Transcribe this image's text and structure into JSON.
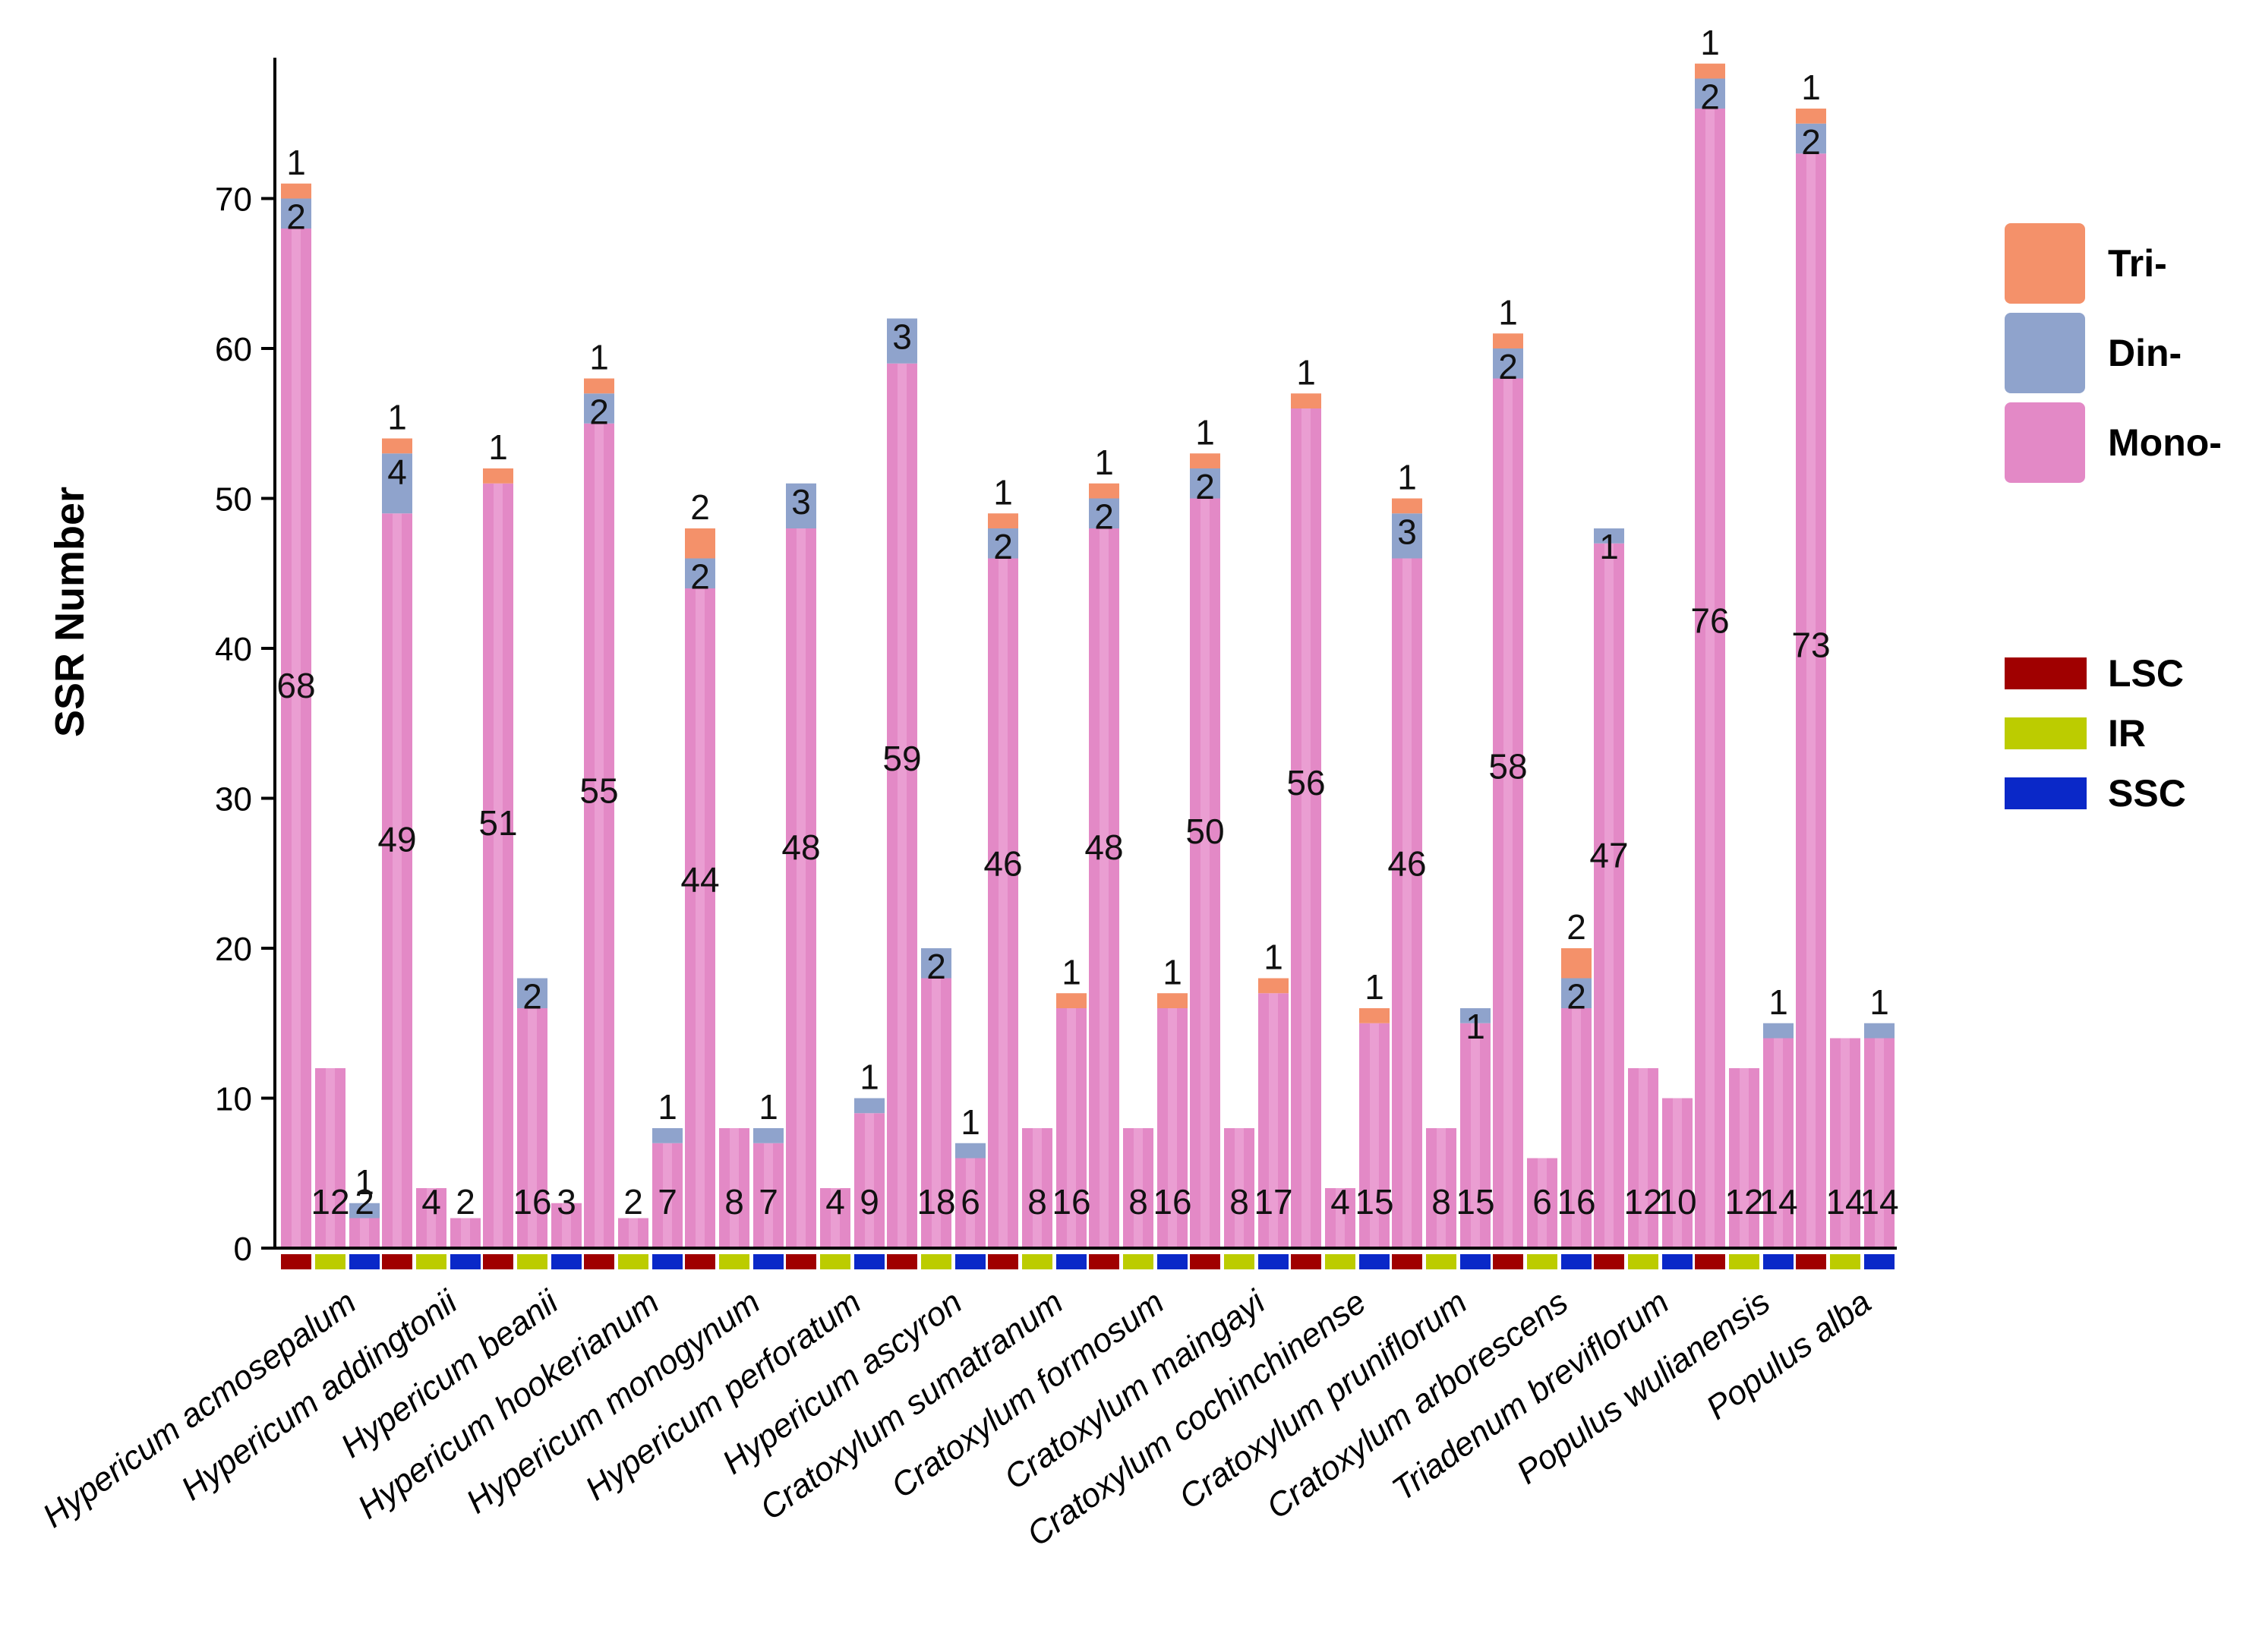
{
  "chart_data": {
    "type": "bar",
    "ylabel": "SSR Number",
    "ylim": [
      0,
      80
    ],
    "yticks": [
      0,
      10,
      20,
      30,
      40,
      50,
      60,
      70
    ],
    "series_order": [
      "Mono-",
      "Din-",
      "Tri-"
    ],
    "regions": [
      {
        "name": "LSC",
        "color": "#a00000"
      },
      {
        "name": "IR",
        "color": "#bccc00"
      },
      {
        "name": "SSC",
        "color": "#0a28c8"
      }
    ],
    "legend_types": [
      {
        "name": "Tri-",
        "color": "#f4916a"
      },
      {
        "name": "Din-",
        "color": "#8fa3cc"
      },
      {
        "name": "Mono-",
        "color": "#e389c6"
      }
    ],
    "species": [
      {
        "name": "Hypericum acmosepalum",
        "bars": [
          {
            "region": "LSC",
            "mono": 68,
            "di": 2,
            "tri": 1
          },
          {
            "region": "IR",
            "mono": 12,
            "di": 0,
            "tri": 0
          },
          {
            "region": "SSC",
            "mono": 2,
            "di": 1,
            "tri": 0
          }
        ]
      },
      {
        "name": "Hypericum addingtonii",
        "bars": [
          {
            "region": "LSC",
            "mono": 49,
            "di": 4,
            "tri": 1
          },
          {
            "region": "IR",
            "mono": 4,
            "di": 0,
            "tri": 0
          },
          {
            "region": "SSC",
            "mono": 2,
            "di": 0,
            "tri": 0
          }
        ]
      },
      {
        "name": "Hypericum beanii",
        "bars": [
          {
            "region": "LSC",
            "mono": 51,
            "di": 0,
            "tri": 1
          },
          {
            "region": "IR",
            "mono": 16,
            "di": 2,
            "tri": 0
          },
          {
            "region": "SSC",
            "mono": 3,
            "di": 0,
            "tri": 0
          }
        ]
      },
      {
        "name": "Hypericum hookerianum",
        "bars": [
          {
            "region": "LSC",
            "mono": 55,
            "di": 2,
            "tri": 1
          },
          {
            "region": "IR",
            "mono": 2,
            "di": 0,
            "tri": 0
          },
          {
            "region": "SSC",
            "mono": 7,
            "di": 1,
            "tri": 0
          }
        ]
      },
      {
        "name": "Hypericum monogynum",
        "bars": [
          {
            "region": "LSC",
            "mono": 44,
            "di": 2,
            "tri": 2
          },
          {
            "region": "IR",
            "mono": 8,
            "di": 0,
            "tri": 0
          },
          {
            "region": "SSC",
            "mono": 7,
            "di": 1,
            "tri": 0
          }
        ]
      },
      {
        "name": "Hypericum perforatum",
        "bars": [
          {
            "region": "LSC",
            "mono": 48,
            "di": 3,
            "tri": 0
          },
          {
            "region": "IR",
            "mono": 4,
            "di": 0,
            "tri": 0
          },
          {
            "region": "SSC",
            "mono": 9,
            "di": 1,
            "tri": 0
          }
        ]
      },
      {
        "name": "Hypericum ascyron",
        "bars": [
          {
            "region": "LSC",
            "mono": 59,
            "di": 3,
            "tri": 0
          },
          {
            "region": "IR",
            "mono": 18,
            "di": 2,
            "tri": 0
          },
          {
            "region": "SSC",
            "mono": 6,
            "di": 1,
            "tri": 0
          }
        ]
      },
      {
        "name": "Cratoxylum sumatranum",
        "bars": [
          {
            "region": "LSC",
            "mono": 46,
            "di": 2,
            "tri": 1
          },
          {
            "region": "IR",
            "mono": 8,
            "di": 0,
            "tri": 0
          },
          {
            "region": "SSC",
            "mono": 16,
            "di": 0,
            "tri": 1
          }
        ]
      },
      {
        "name": "Cratoxylum formosum",
        "bars": [
          {
            "region": "LSC",
            "mono": 48,
            "di": 2,
            "tri": 1
          },
          {
            "region": "IR",
            "mono": 8,
            "di": 0,
            "tri": 0
          },
          {
            "region": "SSC",
            "mono": 16,
            "di": 0,
            "tri": 1
          }
        ]
      },
      {
        "name": "Cratoxylum maingayi",
        "bars": [
          {
            "region": "LSC",
            "mono": 50,
            "di": 2,
            "tri": 1
          },
          {
            "region": "IR",
            "mono": 8,
            "di": 0,
            "tri": 0
          },
          {
            "region": "SSC",
            "mono": 17,
            "di": 0,
            "tri": 1
          }
        ]
      },
      {
        "name": "Cratoxylum cochinchinense",
        "bars": [
          {
            "region": "LSC",
            "mono": 56,
            "di": 0,
            "tri": 1
          },
          {
            "region": "IR",
            "mono": 4,
            "di": 0,
            "tri": 0
          },
          {
            "region": "SSC",
            "mono": 15,
            "di": 0,
            "tri": 1
          }
        ]
      },
      {
        "name": "Cratoxylum pruniflorum",
        "bars": [
          {
            "region": "LSC",
            "mono": 46,
            "di": 3,
            "tri": 1
          },
          {
            "region": "IR",
            "mono": 8,
            "di": 0,
            "tri": 0
          },
          {
            "region": "SSC",
            "mono": 15,
            "di": 1,
            "tri": 0
          }
        ]
      },
      {
        "name": "Cratoxylum arborescens",
        "bars": [
          {
            "region": "LSC",
            "mono": 58,
            "di": 2,
            "tri": 1
          },
          {
            "region": "IR",
            "mono": 6,
            "di": 0,
            "tri": 0
          },
          {
            "region": "SSC",
            "mono": 16,
            "di": 2,
            "tri": 2
          }
        ]
      },
      {
        "name": "Triadenum breviflorum",
        "bars": [
          {
            "region": "LSC",
            "mono": 47,
            "di": 1,
            "tri": 0
          },
          {
            "region": "IR",
            "mono": 12,
            "di": 0,
            "tri": 0
          },
          {
            "region": "SSC",
            "mono": 10,
            "di": 0,
            "tri": 0
          }
        ]
      },
      {
        "name": "Populus wulianensis",
        "bars": [
          {
            "region": "LSC",
            "mono": 76,
            "di": 2,
            "tri": 1
          },
          {
            "region": "IR",
            "mono": 12,
            "di": 0,
            "tri": 0
          },
          {
            "region": "SSC",
            "mono": 14,
            "di": 1,
            "tri": 0
          }
        ]
      },
      {
        "name": "Populus alba",
        "bars": [
          {
            "region": "LSC",
            "mono": 73,
            "di": 2,
            "tri": 1
          },
          {
            "region": "IR",
            "mono": 14,
            "di": 0,
            "tri": 0
          },
          {
            "region": "SSC",
            "mono": 14,
            "di": 1,
            "tri": 0
          }
        ]
      }
    ]
  }
}
